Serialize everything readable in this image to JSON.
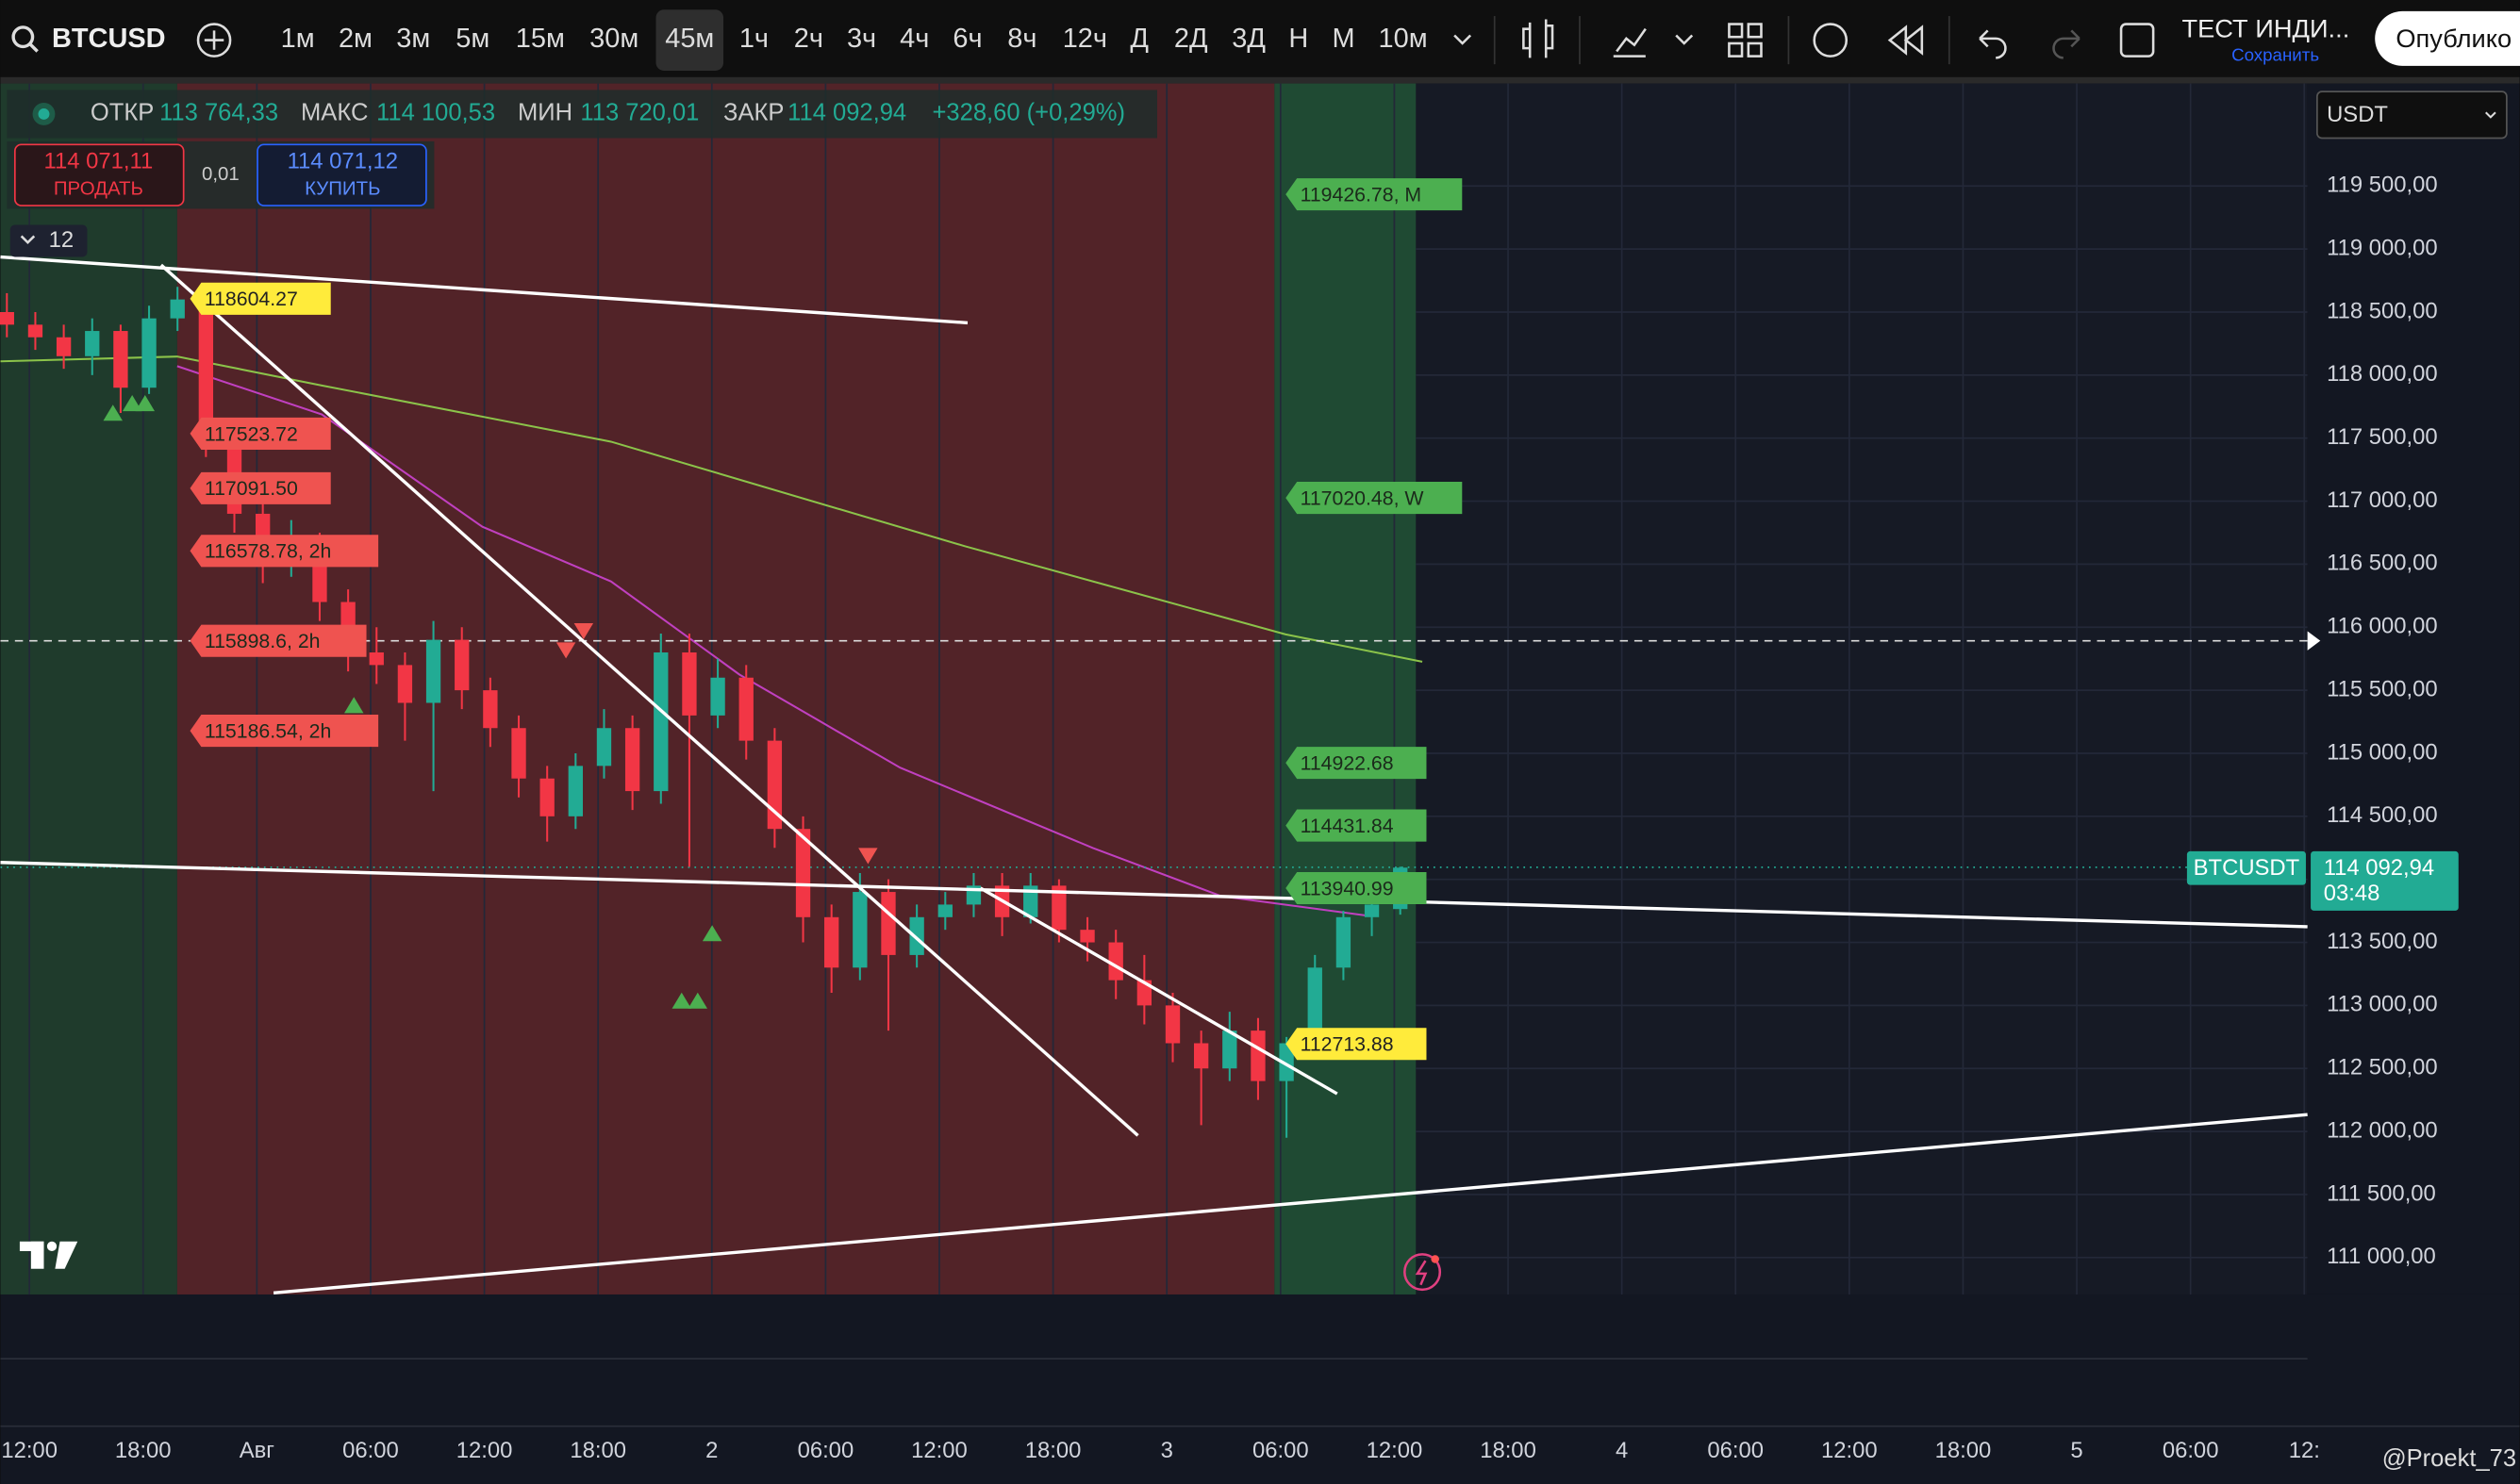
{
  "toolbar": {
    "symbol": "BTCUSD",
    "intervals": [
      "1м",
      "2м",
      "3м",
      "5м",
      "15м",
      "30м",
      "45м",
      "1ч",
      "2ч",
      "3ч",
      "4ч",
      "6ч",
      "8ч",
      "12ч",
      "Д",
      "2Д",
      "3Д",
      "Н",
      "М",
      "10м"
    ],
    "active_interval": "45м",
    "layout_name": "ТЕСТ ИНДИ...",
    "save": "Сохранить",
    "publish": "Опублико"
  },
  "legend": {
    "open_label": "ОТКР",
    "open": "113 764,33",
    "high_label": "МАКС",
    "high": "114 100,53",
    "low_label": "МИН",
    "low": "113 720,01",
    "close_label": "ЗАКР",
    "close": "114 092,94",
    "change": "+328,60 (+0,29%)"
  },
  "trade": {
    "sell_price": "114 071,11",
    "sell": "ПРОДАТЬ",
    "spread": "0,01",
    "buy_price": "114 071,12",
    "buy": "КУПИТЬ"
  },
  "indicators_count": "12",
  "currency": "USDT",
  "chart": {
    "ylim": [
      110707,
      120313
    ],
    "yticks": [
      {
        "value": 111000,
        "label": "111 000,00"
      },
      {
        "value": 111500,
        "label": "111 500,00"
      },
      {
        "value": 112000,
        "label": "112 000,00"
      },
      {
        "value": 112500,
        "label": "112 500,00"
      },
      {
        "value": 113000,
        "label": "113 000,00"
      },
      {
        "value": 113500,
        "label": "113 500,00"
      },
      {
        "value": 114000,
        "label": "114 000,00"
      },
      {
        "value": 114500,
        "label": "114 500,00"
      },
      {
        "value": 115000,
        "label": "115 000,00"
      },
      {
        "value": 115500,
        "label": "115 500,00"
      },
      {
        "value": 116000,
        "label": "116 000,00"
      },
      {
        "value": 116500,
        "label": "116 500,00"
      },
      {
        "value": 117000,
        "label": "117 000,00"
      },
      {
        "value": 117500,
        "label": "117 500,00"
      },
      {
        "value": 118000,
        "label": "118 000,00"
      },
      {
        "value": 118500,
        "label": "118 500,00"
      },
      {
        "value": 119000,
        "label": "119 000,00"
      },
      {
        "value": 119500,
        "label": "119 500,00"
      }
    ],
    "up_color": "#22ab94",
    "down_color": "#f23645",
    "candles": [
      [
        118500,
        118650,
        118300,
        118400
      ],
      [
        118400,
        118500,
        118200,
        118300
      ],
      [
        118300,
        118400,
        118050,
        118150
      ],
      [
        118150,
        118450,
        118000,
        118350
      ],
      [
        118350,
        118400,
        117700,
        117900
      ],
      [
        117900,
        118550,
        117850,
        118450
      ],
      [
        118450,
        118700,
        118350,
        118600
      ],
      [
        118600,
        118650,
        117350,
        117500
      ],
      [
        117500,
        117600,
        116750,
        116900
      ],
      [
        116900,
        117000,
        116350,
        116500
      ],
      [
        116500,
        116850,
        116400,
        116700
      ],
      [
        116700,
        116750,
        116050,
        116200
      ],
      [
        116200,
        116300,
        115650,
        115800
      ],
      [
        115800,
        116000,
        115550,
        115700
      ],
      [
        115700,
        115800,
        115100,
        115400
      ],
      [
        115400,
        116050,
        114700,
        115900
      ],
      [
        115900,
        116000,
        115350,
        115500
      ],
      [
        115500,
        115600,
        115050,
        115200
      ],
      [
        115200,
        115300,
        114650,
        114800
      ],
      [
        114800,
        114900,
        114300,
        114500
      ],
      [
        114500,
        115000,
        114400,
        114900
      ],
      [
        114900,
        115350,
        114800,
        115200
      ],
      [
        115200,
        115300,
        114550,
        114700
      ],
      [
        114700,
        115950,
        114600,
        115800
      ],
      [
        115800,
        115950,
        114100,
        115300
      ],
      [
        115300,
        115750,
        115200,
        115600
      ],
      [
        115600,
        115700,
        114950,
        115100
      ],
      [
        115100,
        115200,
        114250,
        114400
      ],
      [
        114400,
        114500,
        113500,
        113700
      ],
      [
        113700,
        113800,
        113100,
        113300
      ],
      [
        113300,
        114050,
        113200,
        113900
      ],
      [
        113900,
        114000,
        112800,
        113400
      ],
      [
        113400,
        113800,
        113300,
        113700
      ],
      [
        113700,
        113900,
        113600,
        113800
      ],
      [
        113800,
        114050,
        113700,
        113950
      ],
      [
        113950,
        114050,
        113550,
        113700
      ],
      [
        113700,
        114050,
        113650,
        113950
      ],
      [
        113950,
        114000,
        113500,
        113600
      ],
      [
        113600,
        113700,
        113350,
        113500
      ],
      [
        113500,
        113600,
        113050,
        113200
      ],
      [
        113200,
        113400,
        112850,
        113000
      ],
      [
        113000,
        113100,
        112550,
        112700
      ],
      [
        112700,
        112800,
        112050,
        112500
      ],
      [
        112500,
        112950,
        112400,
        112800
      ],
      [
        112800,
        112900,
        112250,
        112400
      ],
      [
        112400,
        112750,
        111950,
        112700
      ],
      [
        112700,
        113400,
        112600,
        113300
      ],
      [
        113300,
        113750,
        113200,
        113700
      ],
      [
        113700,
        113900,
        113550,
        113800
      ],
      [
        113764.33,
        114100.53,
        113720.01,
        114092.94
      ]
    ],
    "price_tags": [
      {
        "text": "118604.27",
        "color": "#ffeb3b"
      },
      {
        "text": "117523.72",
        "color": "#ef5350"
      },
      {
        "text": "117091.50",
        "color": "#ef5350"
      },
      {
        "text": "116578.78, 2h",
        "color": "#ef5350"
      },
      {
        "text": "115898.6, 2h",
        "color": "#ef5350"
      },
      {
        "text": "115186.54, 2h",
        "color": "#ef5350"
      },
      {
        "text": "119426.78, M",
        "color": "#4caf50"
      },
      {
        "text": "117020.48, W",
        "color": "#4caf50"
      },
      {
        "text": "114922.68",
        "color": "#4caf50"
      },
      {
        "text": "114431.84",
        "color": "#4caf50"
      },
      {
        "text": "113940.99",
        "color": "#4caf50"
      },
      {
        "text": "112713.88",
        "color": "#ffeb3b"
      }
    ],
    "last_price": {
      "symbol": "BTCUSDT",
      "price": "114 092,94",
      "countdown": "03:48"
    },
    "time_labels": [
      "12:00",
      "18:00",
      "Авг",
      "06:00",
      "12:00",
      "18:00",
      "2",
      "06:00",
      "12:00",
      "18:00",
      "3",
      "06:00",
      "12:00",
      "18:00",
      "4",
      "06:00",
      "12:00",
      "18:00",
      "5",
      "06:00",
      "12:"
    ]
  },
  "watermark": "@Proekt_73"
}
